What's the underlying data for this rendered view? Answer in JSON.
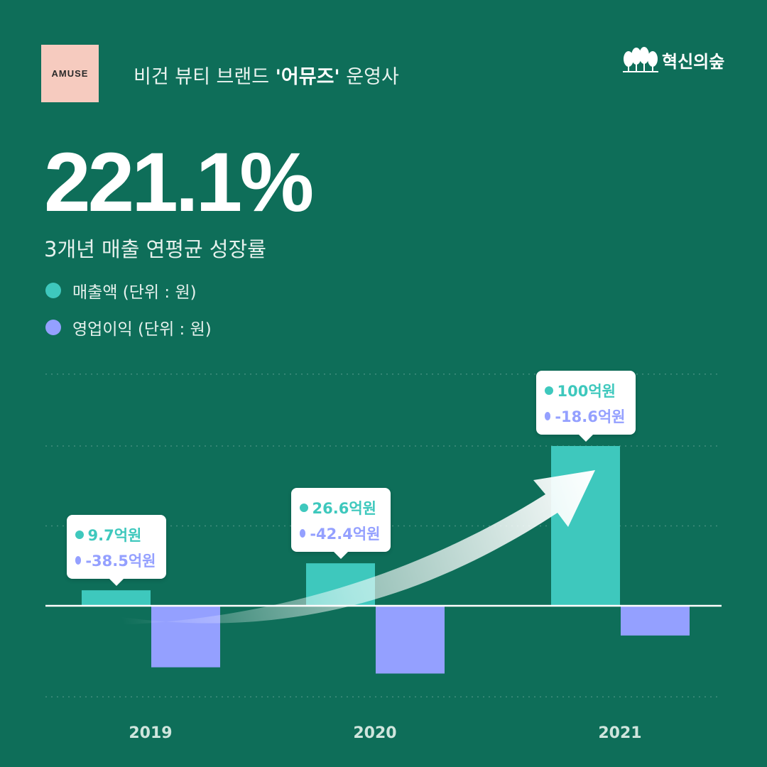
{
  "header": {
    "logo_text": "AMUSE",
    "brand_desc_prefix": "비건 뷰티 브랜드 ",
    "brand_desc_bold": "'어뮤즈'",
    "brand_desc_suffix": " 운영사",
    "publisher": "혁신의숲",
    "publisher_icon": "tree-icon"
  },
  "headline": {
    "value": "221.1%",
    "caption": "3개년 매출 연평균 성장률"
  },
  "chart_data": {
    "type": "bar",
    "categories": [
      "2019",
      "2020",
      "2021"
    ],
    "series": [
      {
        "name": "매출액 (단위 : 원)",
        "values": [
          9.7,
          26.6,
          100
        ],
        "labels": [
          "9.7억원",
          "26.6억원",
          "100억원"
        ],
        "color": "#3ec8bd"
      },
      {
        "name": "영업이익 (단위 : 원)",
        "values": [
          -38.5,
          -42.4,
          -18.6
        ],
        "labels": [
          "-38.5억원",
          "-42.4억원",
          "-18.6억원"
        ],
        "color": "#94a0ff"
      }
    ],
    "ylim": [
      -55,
      145
    ],
    "grid": true,
    "trend_arrow": true,
    "legend_position": "top-left"
  },
  "colors": {
    "background": "#0e6e59",
    "revenue": "#3ec8bd",
    "profit": "#94a0ff",
    "logo_bg": "#f6cbbf"
  }
}
